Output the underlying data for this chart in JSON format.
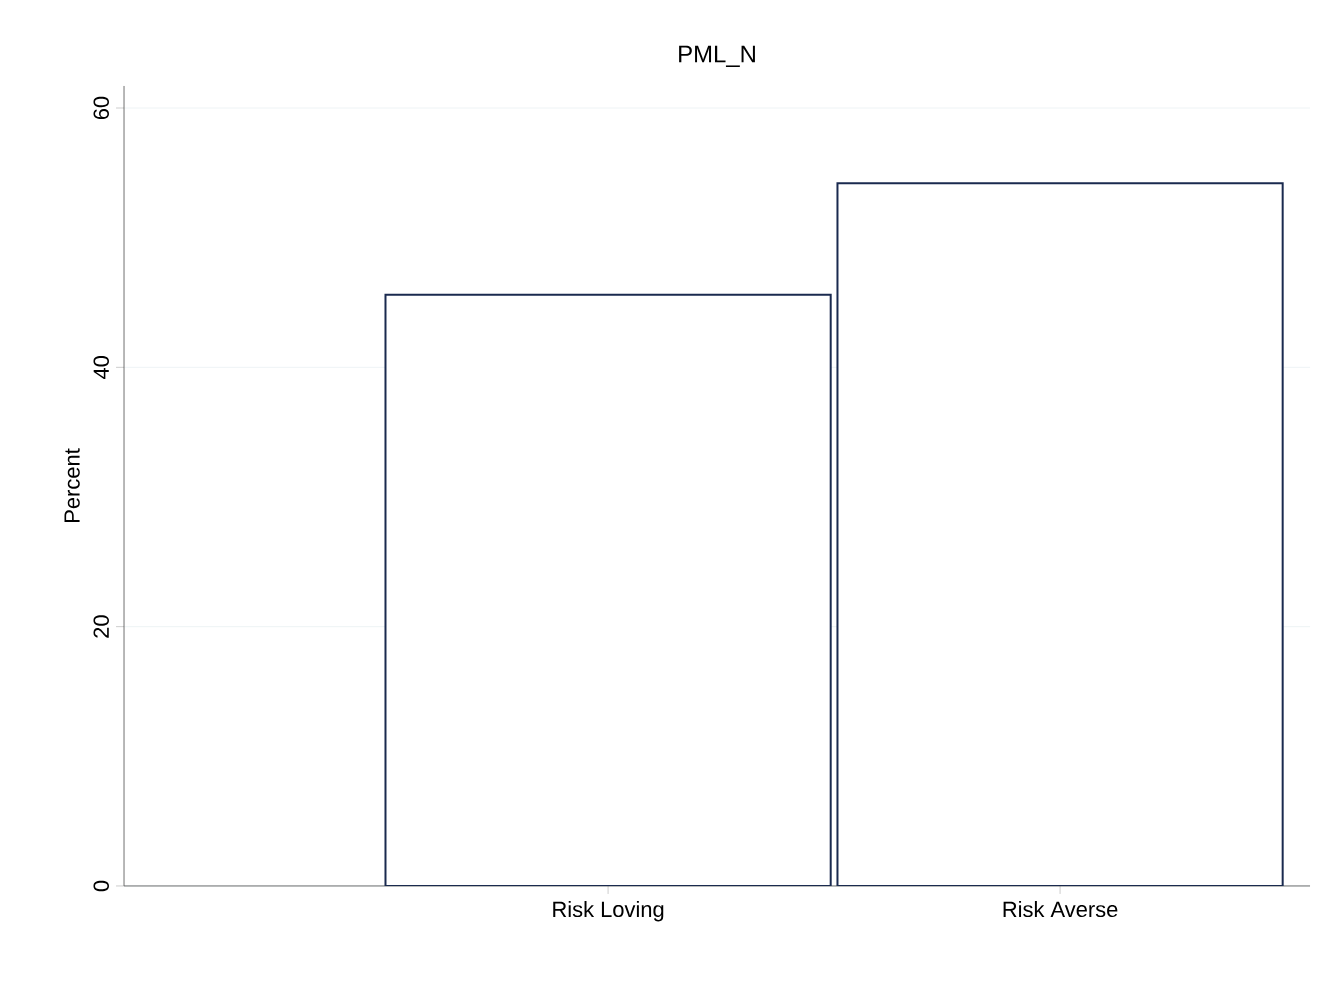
{
  "chart_data": {
    "type": "bar",
    "title": "PML_N",
    "ylabel": "Percent",
    "categories": [
      "Risk Loving",
      "Risk Averse"
    ],
    "values": [
      45.6,
      54.2
    ],
    "color": "#ffffff",
    "ylim": [
      0,
      61.7
    ],
    "yticks": [
      0,
      20,
      40,
      60
    ],
    "grid": "y"
  }
}
